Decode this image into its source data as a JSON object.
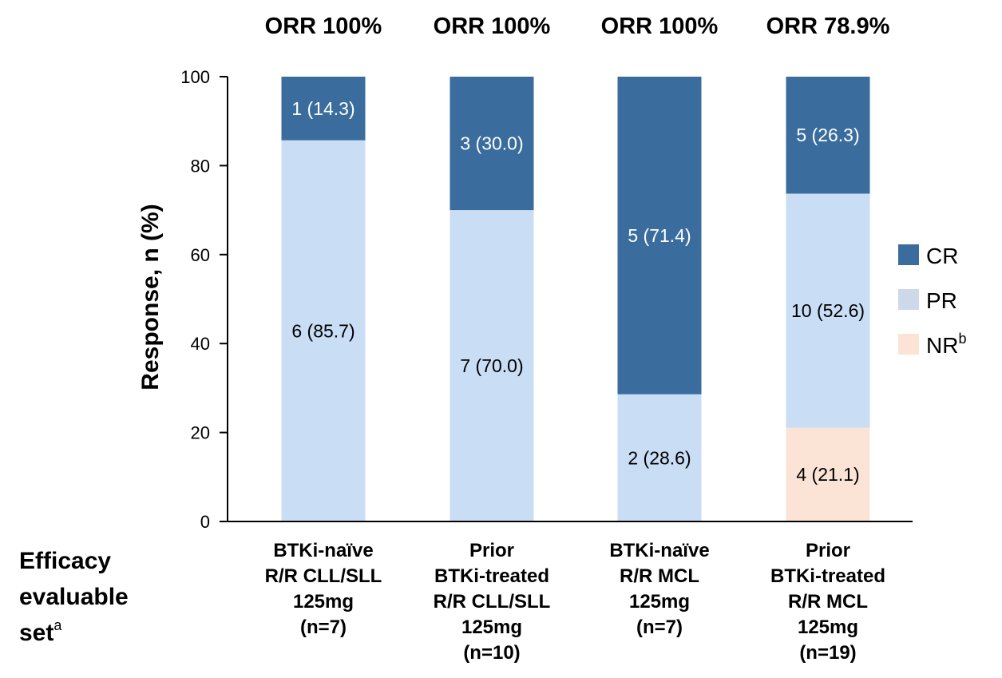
{
  "chart_data": {
    "type": "bar",
    "stacked": true,
    "ylabel": "Response, n (%)",
    "ylim": [
      0,
      100
    ],
    "yticks": [
      "0",
      "20",
      "40",
      "60",
      "80",
      "100"
    ],
    "footnote_label": {
      "text": [
        "Efficacy",
        "evaluable",
        "set"
      ],
      "superscript": "a"
    },
    "orr_labels": [
      "ORR 100%",
      "ORR 100%",
      "ORR 100%",
      "ORR 78.9%"
    ],
    "categories": [
      [
        "BTKi-naïve",
        "R/R CLL/SLL",
        "125mg",
        "(n=7)"
      ],
      [
        "Prior",
        "BTKi-treated",
        "R/R CLL/SLL",
        "125mg",
        "(n=10)"
      ],
      [
        "BTKi-naïve",
        "R/R MCL",
        "125mg",
        "(n=7)"
      ],
      [
        "Prior",
        "BTKi-treated",
        "R/R MCL",
        "125mg",
        "(n=19)"
      ]
    ],
    "series": [
      {
        "name": "NR",
        "superscript": "b",
        "color": "#fbe3d5",
        "text_color": "#000000",
        "values": [
          0,
          0,
          0,
          21.1
        ],
        "labels": [
          "",
          "",
          "",
          "4 (21.1)"
        ]
      },
      {
        "name": "PR",
        "color": "#c9ddf5",
        "legend_color": "#cdd9ea",
        "text_color": "#000000",
        "values": [
          85.7,
          70.0,
          28.6,
          52.6
        ],
        "labels": [
          "6 (85.7)",
          "7 (70.0)",
          "2 (28.6)",
          "10 (52.6)"
        ]
      },
      {
        "name": "CR",
        "color": "#3a6d9e",
        "text_color": "#ffffff",
        "values": [
          14.3,
          30.0,
          71.4,
          26.3
        ],
        "labels": [
          "1 (14.3)",
          "3 (30.0)",
          "5 (71.4)",
          "5 (26.3)"
        ]
      }
    ],
    "legend_order": [
      "CR",
      "PR",
      "NR"
    ],
    "legend_position": "right"
  }
}
